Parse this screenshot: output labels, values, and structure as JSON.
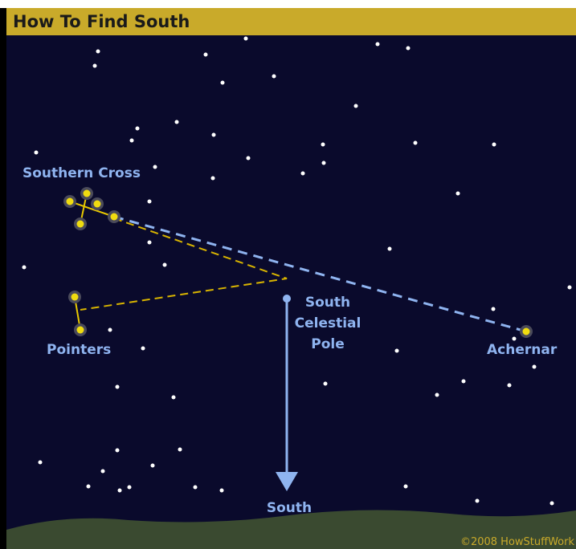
{
  "header": {
    "title": "How To Find South"
  },
  "labels": {
    "southern_cross": "Southern Cross",
    "pointers": "Pointers",
    "pole": [
      "South",
      "Celestial",
      "Pole"
    ],
    "achernar": "Achernar",
    "south": "South"
  },
  "credit": "©2008 HowStuffWork"
}
